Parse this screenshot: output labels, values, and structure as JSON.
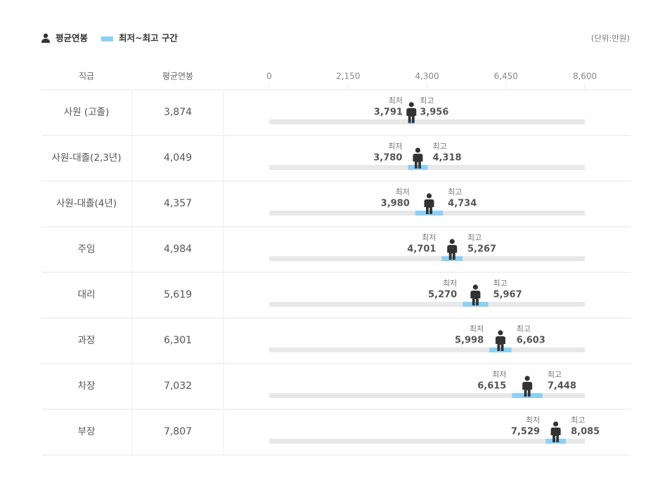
{
  "chart_data": {
    "type": "range",
    "legend": {
      "average": "평균연봉",
      "range": "최저~최고 구간"
    },
    "unit_note": "(단위:만원)",
    "column_headers": [
      "직급",
      "평균연봉"
    ],
    "low_text": "최저",
    "high_text": "최고",
    "categories": [
      "사원 (고졸)",
      "사원-대졸(2,3년)",
      "사원-대졸(4년)",
      "주임",
      "대리",
      "과장",
      "차장",
      "부장"
    ],
    "values": [
      3874,
      4049,
      4357,
      4984,
      5619,
      6301,
      7032,
      7807
    ],
    "value_labels": [
      "3,874",
      "4,049",
      "4,357",
      "4,984",
      "5,619",
      "6,301",
      "7,032",
      "7,807"
    ],
    "low": [
      3791,
      3780,
      3980,
      4701,
      5270,
      5998,
      6615,
      7529
    ],
    "low_labels": [
      "3,791",
      "3,780",
      "3,980",
      "4,701",
      "5,270",
      "5,998",
      "6,615",
      "7,529"
    ],
    "high": [
      3956,
      4318,
      4734,
      5267,
      5967,
      6603,
      7448,
      8085
    ],
    "high_labels": [
      "3,956",
      "4,318",
      "4,734",
      "5,267",
      "5,967",
      "6,603",
      "7,448",
      "8,085"
    ],
    "xlim": [
      0,
      8600
    ],
    "xticks": [
      0,
      {
        "value": 2150,
        "label": "2,150"
      },
      {
        "value": 4300,
        "label": "4,300"
      },
      {
        "value": 6450,
        "label": "6,450"
      },
      {
        "value": 8600,
        "label": "8,600"
      }
    ],
    "range_color": "#8dcff5",
    "icon_color": "#333333",
    "track_color": "#e8e8e8"
  }
}
